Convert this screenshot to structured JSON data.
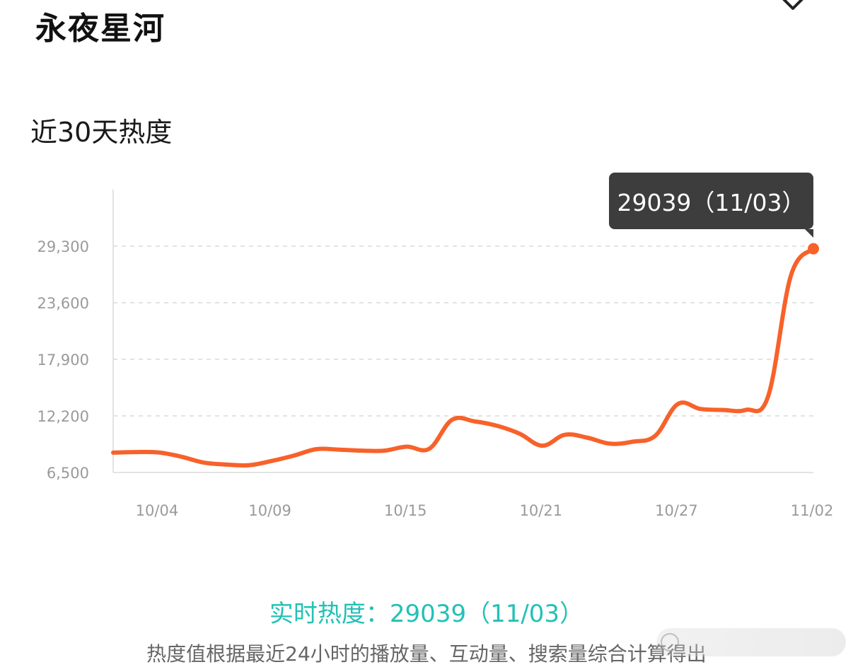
{
  "page": {
    "app_title": "永夜星河",
    "section_title": "近30天热度",
    "collapse_icon": "chevron-down-icon",
    "watermark_icon": "weibo-icon"
  },
  "tooltip": {
    "text": "29039（11/03）"
  },
  "realtime": {
    "text": "实时热度：29039（11/03）"
  },
  "note": {
    "text": "热度值根据最近24小时的播放量、互动量、搜索量综合计算得出"
  },
  "colors": {
    "line": "#f7622a",
    "realtime_text": "#22c1b6",
    "tooltip_bg": "#3d3d3d",
    "grid": "#e3e3e3",
    "axis_text": "#9a9a9a"
  },
  "chart_data": {
    "type": "line",
    "title": "近30天热度",
    "xlabel": "",
    "ylabel": "",
    "x_ticks": [
      "10/04",
      "10/09",
      "10/15",
      "10/21",
      "10/27",
      "11/02"
    ],
    "y_ticks": [
      "6,500",
      "12,200",
      "17,900",
      "23,600",
      "29,300"
    ],
    "ylim": [
      6500,
      29300
    ],
    "grid": "horizontal-dashed",
    "highlight": {
      "x": "11/03",
      "y": 29039
    },
    "series": [
      {
        "points": [
          [
            "10/03",
            8500
          ],
          [
            "10/04",
            8560
          ],
          [
            "10/05",
            8520
          ],
          [
            "10/06",
            8100
          ],
          [
            "10/07",
            7500
          ],
          [
            "10/08",
            7300
          ],
          [
            "10/09",
            7230
          ],
          [
            "10/10",
            7650
          ],
          [
            "10/11",
            8200
          ],
          [
            "10/12",
            8850
          ],
          [
            "10/13",
            8800
          ],
          [
            "10/14",
            8700
          ],
          [
            "10/15",
            8700
          ],
          [
            "10/16",
            9100
          ],
          [
            "10/17",
            8900
          ],
          [
            "10/18",
            11800
          ],
          [
            "10/19",
            11650
          ],
          [
            "10/20",
            11200
          ],
          [
            "10/21",
            10400
          ],
          [
            "10/22",
            9200
          ],
          [
            "10/23",
            10300
          ],
          [
            "10/24",
            10000
          ],
          [
            "10/25",
            9400
          ],
          [
            "10/26",
            9600
          ],
          [
            "10/27",
            10200
          ],
          [
            "10/28",
            13400
          ],
          [
            "10/29",
            12900
          ],
          [
            "10/30",
            12800
          ],
          [
            "10/31",
            12800
          ],
          [
            "11/01",
            14200
          ],
          [
            "11/02",
            26300
          ],
          [
            "11/03",
            29039
          ]
        ]
      }
    ]
  }
}
